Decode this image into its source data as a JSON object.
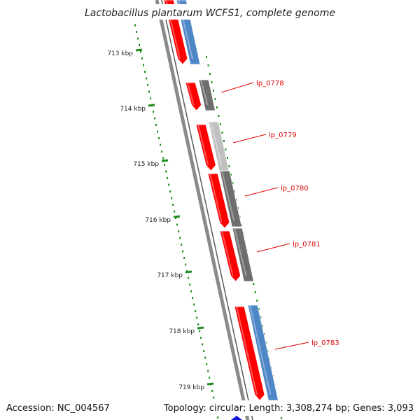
{
  "title": "Lactobacillus plantarum WCFS1, complete genome",
  "footer": {
    "accession": "Accession: NC_004567",
    "summary": "Topology: circular; Length: 3,308,274 bp; Genes: 3,093"
  },
  "axis_ticks": [
    "713 kbp",
    "714 kbp",
    "715 kbp",
    "716 kbp",
    "717 kbp",
    "718 kbp",
    "719 kbp"
  ],
  "gene_labels": [
    "lp_0778",
    "lp_0779",
    "lp_0780",
    "lp_0781",
    "lp_0783"
  ],
  "colors": {
    "cds_forward": "#ff0000",
    "cog_blue": "#4f86c6",
    "cog_dark_gray": "#6e6e6e",
    "cog_light_gray": "#c0c0c0",
    "tick_green": "#1e8c1e",
    "backbone": "#8a8a8a",
    "label_red": "#dd0000"
  }
}
